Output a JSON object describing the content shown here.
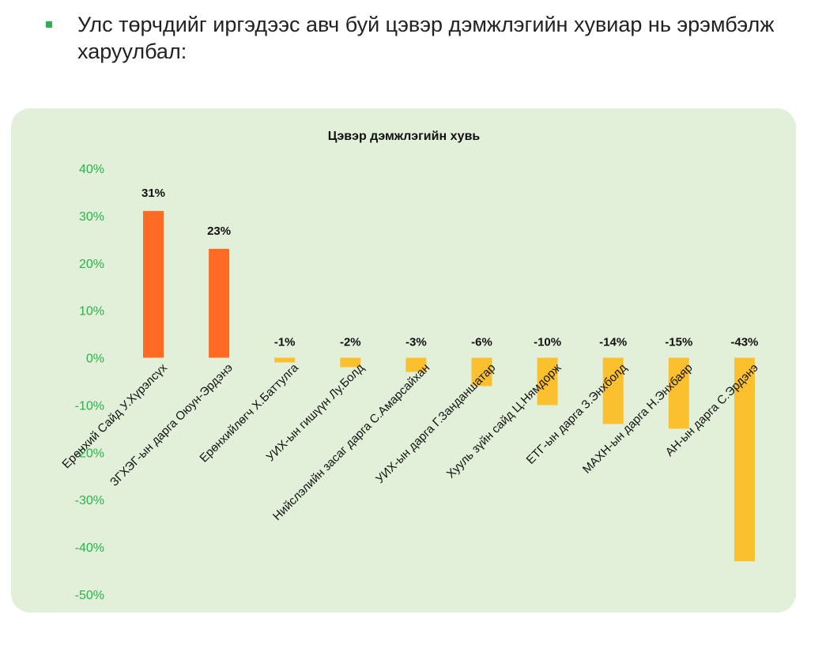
{
  "slide": {
    "bullet_color": "#2bb24c",
    "heading": "Улс төрчдийг иргэдээс авч буй цэвэр дэмжлэгийн хувиар нь эрэмбэлж харуулбал:"
  },
  "chart_data": {
    "type": "bar",
    "title": "Цэвэр дэмжлэгийн хувь",
    "xlabel": "",
    "ylabel": "",
    "ylim": [
      -50,
      40
    ],
    "yticks": [
      40,
      30,
      20,
      10,
      0,
      -10,
      -20,
      -30,
      -40,
      -50
    ],
    "ytick_labels": [
      "40%",
      "30%",
      "20%",
      "10%",
      "0%",
      "-10%",
      "-20%",
      "-30%",
      "-40%",
      "-50%"
    ],
    "grid": false,
    "legend": "none",
    "categories": [
      "Ерөнхий Сайд У.Хүрэлсүх",
      "ЗГХЭГ-ын дарга Оюун-Эрдэнэ",
      "Ерөнхийлөгч Х.Баттулга",
      "УИХ-ын гишүүн Лу.Болд",
      "Нийслэлийн засаг дарга С.Амарсайхан",
      "УИХ-ын дарга Г.Занданшатар",
      "Хууль зүйн сайд Ц.Нямдорж",
      "ЕТГ-ын дарга З.Энхболд",
      "МАХН-ын дарга Н.Энхбаяр",
      "АН-ын дарга С.Эрдэнэ"
    ],
    "values": [
      31,
      23,
      -1,
      -2,
      -3,
      -6,
      -10,
      -14,
      -15,
      -43
    ],
    "data_labels": [
      "31%",
      "23%",
      "-1%",
      "-2%",
      "-3%",
      "-6%",
      "-10%",
      "-14%",
      "-15%",
      "-43%"
    ],
    "colors": {
      "positive": "#ff6a24",
      "negative": "#fbc02d"
    }
  }
}
